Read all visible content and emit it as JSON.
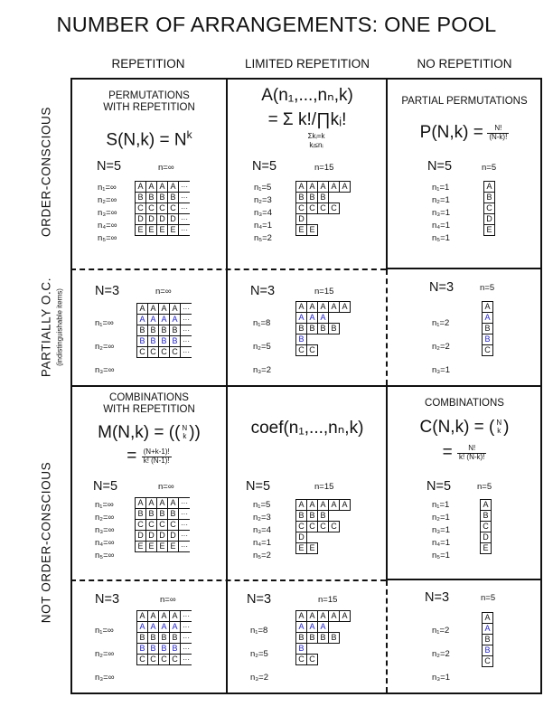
{
  "title": "NUMBER OF ARRANGEMENTS: ONE POOL",
  "columns": [
    "REPETITION",
    "LIMITED REPETITION",
    "NO REPETITION"
  ],
  "rows": {
    "order_conscious": "ORDER-CONSCIOUS",
    "partially": "PARTIALLY  O.C.",
    "partially_sub": "(indistinguishable items)",
    "not_order": "NOT  ORDER-CONSCIOUS"
  },
  "cells": {
    "oc_rep": {
      "label1": "PERMUTATIONS",
      "label2": "WITH REPETITION",
      "formula": "S(N,k) = N",
      "formula_sup": "k",
      "n": "N=5",
      "n_lim": "n=∞",
      "counts": [
        "n₁=∞",
        "n₂=∞",
        "n₃=∞",
        "n₄=∞",
        "n₅=∞"
      ],
      "grid": [
        [
          "A",
          "A",
          "A",
          "A",
          "..."
        ],
        [
          "B",
          "B",
          "B",
          "B",
          "..."
        ],
        [
          "C",
          "C",
          "C",
          "C",
          "..."
        ],
        [
          "D",
          "D",
          "D",
          "D",
          "..."
        ],
        [
          "E",
          "E",
          "E",
          "E",
          "..."
        ]
      ]
    },
    "oc_lim": {
      "formula1": "A(n₁,...,nₙ,k)",
      "formula2": "= Σ k!/∏kᵢ!",
      "cond1": "Σkᵢ=k",
      "cond2": "kᵢ≤nᵢ",
      "n": "N=5",
      "n_lim": "n=15",
      "counts": [
        "n₁=5",
        "n₂=3",
        "n₃=4",
        "n₄=1",
        "n₅=2"
      ],
      "rows": [
        [
          "A",
          "A",
          "A",
          "A",
          "A"
        ],
        [
          "B",
          "B",
          "B"
        ],
        [
          "C",
          "C",
          "C",
          "C"
        ],
        [
          "D"
        ],
        [
          "E",
          "E"
        ]
      ]
    },
    "oc_none": {
      "label1": "PARTIAL PERMUTATIONS",
      "formula": "P(N,k) =",
      "frac_num": "N!",
      "frac_den": "(N-k)!",
      "n": "N=5",
      "n_lim": "n=5",
      "counts": [
        "n₁=1",
        "n₂=1",
        "n₃=1",
        "n₄=1",
        "n₅=1"
      ],
      "rows": [
        "A",
        "B",
        "C",
        "D",
        "E"
      ]
    },
    "p_rep": {
      "n": "N=3",
      "n_lim": "n=∞",
      "counts": [
        "n₁=∞",
        "n₂=∞",
        "n₃=∞"
      ],
      "grid": [
        [
          "A",
          "A",
          "A",
          "A",
          "..."
        ],
        [
          "A",
          "A",
          "A",
          "A",
          "..."
        ],
        [
          "B",
          "B",
          "B",
          "B",
          "..."
        ],
        [
          "B",
          "B",
          "B",
          "B",
          "..."
        ],
        [
          "C",
          "C",
          "C",
          "C",
          "..."
        ]
      ],
      "blue_rows": [
        1,
        3
      ]
    },
    "p_lim": {
      "n": "N=3",
      "n_lim": "n=15",
      "counts": [
        "n₁=8",
        "n₂=5",
        "n₃=2"
      ],
      "rows": [
        [
          "A",
          "A",
          "A",
          "A",
          "A"
        ],
        [
          "A",
          "A",
          "A"
        ],
        [
          "B",
          "B",
          "B",
          "B"
        ],
        [
          "B"
        ],
        [
          "C",
          "C"
        ]
      ],
      "blue_rows": [
        1,
        3
      ]
    },
    "p_none": {
      "n": "N=3",
      "n_lim": "n=5",
      "counts": [
        "n₁=2",
        "n₂=2",
        "n₃=1"
      ],
      "rows": [
        "A",
        "A",
        "B",
        "B",
        "C"
      ],
      "blue_rows": [
        1,
        3
      ]
    },
    "n_rep": {
      "label1": "COMBINATIONS",
      "label2": "WITH REPETITION",
      "formula": "M(N,k) = ((",
      "formula_end": "))",
      "binom_top": "N",
      "binom_bot": "k",
      "frac_num": "(N+k-1)!",
      "frac_den": "k! (N-1)!",
      "n": "N=5",
      "n_lim": "n=∞",
      "counts": [
        "n₁=∞",
        "n₂=∞",
        "n₃=∞",
        "n₄=∞",
        "n₅=∞"
      ],
      "grid": [
        [
          "A",
          "A",
          "A",
          "A",
          "..."
        ],
        [
          "B",
          "B",
          "B",
          "B",
          "..."
        ],
        [
          "C",
          "C",
          "C",
          "C",
          "..."
        ],
        [
          "D",
          "D",
          "D",
          "D",
          "..."
        ],
        [
          "E",
          "E",
          "E",
          "E",
          "..."
        ]
      ]
    },
    "n_lim": {
      "formula": "coef(n₁,...,nₙ,k)",
      "n": "N=5",
      "n_lim": "n=15",
      "counts": [
        "n₁=5",
        "n₂=3",
        "n₃=4",
        "n₄=1",
        "n₅=2"
      ],
      "rows": [
        [
          "A",
          "A",
          "A",
          "A",
          "A"
        ],
        [
          "B",
          "B",
          "B"
        ],
        [
          "C",
          "C",
          "C",
          "C"
        ],
        [
          "D"
        ],
        [
          "E",
          "E"
        ]
      ]
    },
    "n_none": {
      "label1": "COMBINATIONS",
      "formula": "C(N,k) = (",
      "formula_end": ")",
      "binom_top": "N",
      "binom_bot": "k",
      "frac_num": "N!",
      "frac_den": "k! (N-k)!",
      "n": "N=5",
      "n_lim": "n=5",
      "counts": [
        "n₁=1",
        "n₂=1",
        "n₃=1",
        "n₄=1",
        "n₅=1"
      ],
      "rows": [
        "A",
        "B",
        "C",
        "D",
        "E"
      ]
    },
    "np_rep": {
      "n": "N=3",
      "n_lim": "n=∞",
      "counts": [
        "n₁=∞",
        "n₂=∞",
        "n₃=∞"
      ],
      "grid": [
        [
          "A",
          "A",
          "A",
          "A",
          "..."
        ],
        [
          "A",
          "A",
          "A",
          "A",
          "..."
        ],
        [
          "B",
          "B",
          "B",
          "B",
          "..."
        ],
        [
          "B",
          "B",
          "B",
          "B",
          "..."
        ],
        [
          "C",
          "C",
          "C",
          "C",
          "..."
        ]
      ],
      "blue_rows": [
        1,
        3
      ]
    },
    "np_lim": {
      "n": "N=3",
      "n_lim": "n=15",
      "counts": [
        "n₁=8",
        "n₂=5",
        "n₃=2"
      ],
      "rows": [
        [
          "A",
          "A",
          "A",
          "A",
          "A"
        ],
        [
          "A",
          "A",
          "A"
        ],
        [
          "B",
          "B",
          "B",
          "B"
        ],
        [
          "B"
        ],
        [
          "C",
          "C"
        ]
      ],
      "blue_rows": [
        1,
        3
      ]
    },
    "np_none": {
      "n": "N=3",
      "n_lim": "n=5",
      "counts": [
        "n₁=2",
        "n₂=2",
        "n₃=1"
      ],
      "rows": [
        "A",
        "A",
        "B",
        "B",
        "C"
      ],
      "blue_rows": [
        1,
        3
      ]
    }
  }
}
